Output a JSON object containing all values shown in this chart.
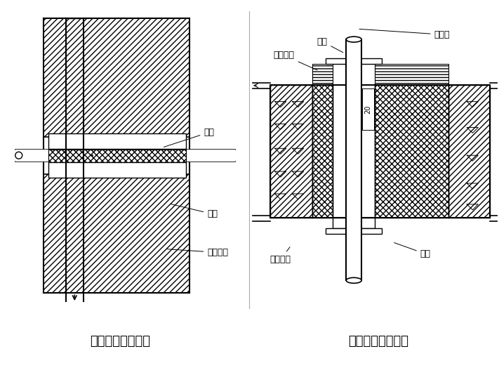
{
  "title1": "防水套管穿墙做法",
  "title2": "套管穿楼板的做法",
  "label_tao_guan": "套管",
  "label_li_qing": "沥青",
  "label_li_qing_ma": "沥青麻刀",
  "label_mei_qi": "煤气管",
  "label_tao_guan2": "套管",
  "label_li_qing2": "沥青",
  "label_li_qing_ma2": "沥青麻刀",
  "label_shui_ni": "水泥砂浆",
  "label_20": "20",
  "font_size_title": 13,
  "font_size_label": 8
}
